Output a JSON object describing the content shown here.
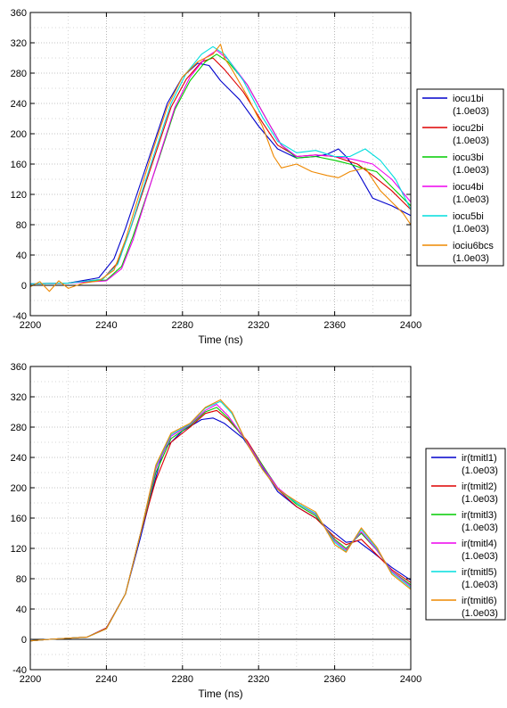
{
  "chart_data": [
    {
      "type": "line",
      "title": "",
      "xlabel": "Time (ns)",
      "ylabel": "",
      "xlim": [
        2200,
        2400
      ],
      "ylim": [
        -40,
        360
      ],
      "xticks": [
        2200,
        2240,
        2280,
        2320,
        2360,
        2400
      ],
      "yticks": [
        -40,
        0,
        40,
        80,
        120,
        160,
        200,
        240,
        280,
        320,
        360
      ],
      "grid": true,
      "legend_position": "right",
      "series": [
        {
          "name": "iocu1bi",
          "scale": "(1.0e03)",
          "color": "#0000cc",
          "x": [
            2200,
            2220,
            2236,
            2244,
            2250,
            2256,
            2264,
            2272,
            2280,
            2288,
            2294,
            2300,
            2310,
            2320,
            2330,
            2340,
            2350,
            2356,
            2362,
            2366,
            2372,
            2380,
            2390,
            2400
          ],
          "y": [
            2,
            3,
            10,
            35,
            75,
            120,
            180,
            240,
            275,
            293,
            290,
            270,
            245,
            210,
            180,
            168,
            170,
            173,
            180,
            170,
            150,
            115,
            105,
            92
          ]
        },
        {
          "name": "iocu2bi",
          "scale": "(1.0e03)",
          "color": "#dd0000",
          "x": [
            2200,
            2220,
            2238,
            2246,
            2252,
            2258,
            2266,
            2274,
            2282,
            2290,
            2296,
            2302,
            2312,
            2322,
            2330,
            2340,
            2350,
            2360,
            2366,
            2372,
            2380,
            2390,
            2400
          ],
          "y": [
            2,
            3,
            8,
            30,
            70,
            115,
            175,
            235,
            272,
            295,
            300,
            285,
            255,
            215,
            185,
            170,
            172,
            170,
            165,
            160,
            145,
            125,
            100
          ]
        },
        {
          "name": "iocu3bi",
          "scale": "(1.0e03)",
          "color": "#00cc00",
          "x": [
            2200,
            2220,
            2240,
            2248,
            2254,
            2260,
            2268,
            2276,
            2284,
            2292,
            2298,
            2304,
            2314,
            2324,
            2332,
            2340,
            2350,
            2360,
            2368,
            2374,
            2382,
            2390,
            2400
          ],
          "y": [
            2,
            3,
            7,
            25,
            65,
            110,
            170,
            232,
            270,
            295,
            305,
            295,
            265,
            220,
            185,
            168,
            170,
            165,
            160,
            155,
            150,
            130,
            105
          ]
        },
        {
          "name": "iocu4bi",
          "scale": "(1.0e03)",
          "color": "#ee00ee",
          "x": [
            2200,
            2220,
            2240,
            2248,
            2254,
            2260,
            2268,
            2276,
            2284,
            2292,
            2298,
            2304,
            2314,
            2324,
            2332,
            2340,
            2350,
            2360,
            2366,
            2372,
            2380,
            2390,
            2400
          ],
          "y": [
            2,
            3,
            6,
            22,
            60,
            108,
            172,
            235,
            275,
            300,
            310,
            298,
            265,
            220,
            185,
            170,
            172,
            170,
            168,
            165,
            160,
            140,
            110
          ]
        },
        {
          "name": "iocu5bi",
          "scale": "(1.0e03)",
          "color": "#00dddd",
          "x": [
            2200,
            2220,
            2238,
            2246,
            2252,
            2258,
            2266,
            2274,
            2282,
            2290,
            2296,
            2302,
            2312,
            2322,
            2330,
            2340,
            2350,
            2360,
            2368,
            2376,
            2384,
            2392,
            2400
          ],
          "y": [
            2,
            3,
            8,
            28,
            70,
            118,
            180,
            240,
            280,
            305,
            315,
            305,
            270,
            222,
            190,
            175,
            178,
            170,
            170,
            180,
            165,
            140,
            100
          ]
        },
        {
          "name": "iociu6bcs",
          "scale": "(1.0e03)",
          "color": "#ee8800",
          "x": [
            2200,
            2205,
            2210,
            2215,
            2220,
            2228,
            2236,
            2244,
            2250,
            2256,
            2264,
            2272,
            2280,
            2288,
            2296,
            2300,
            2302,
            2306,
            2314,
            2322,
            2328,
            2332,
            2340,
            2348,
            2356,
            2362,
            2368,
            2376,
            2384,
            2390,
            2396,
            2400
          ],
          "y": [
            -2,
            5,
            -8,
            6,
            -4,
            3,
            6,
            20,
            60,
            110,
            175,
            235,
            275,
            295,
            305,
            318,
            300,
            285,
            250,
            210,
            170,
            155,
            160,
            150,
            145,
            142,
            150,
            155,
            125,
            110,
            95,
            80
          ]
        }
      ]
    },
    {
      "type": "line",
      "title": "",
      "xlabel": "Time (ns)",
      "ylabel": "",
      "xlim": [
        2200,
        2400
      ],
      "ylim": [
        -40,
        360
      ],
      "xticks": [
        2200,
        2240,
        2280,
        2320,
        2360,
        2400
      ],
      "yticks": [
        -40,
        0,
        40,
        80,
        120,
        160,
        200,
        240,
        280,
        320,
        360
      ],
      "grid": true,
      "legend_position": "right",
      "series": [
        {
          "name": "ir(tmitl1)",
          "scale": "(1.0e03)",
          "color": "#0000cc",
          "x": [
            2200,
            2210,
            2230,
            2240,
            2250,
            2258,
            2264,
            2270,
            2280,
            2290,
            2296,
            2302,
            2312,
            2320,
            2330,
            2340,
            2350,
            2360,
            2366,
            2372,
            2380,
            2390,
            2400
          ],
          "y": [
            -2,
            0,
            3,
            15,
            60,
            135,
            195,
            250,
            275,
            290,
            292,
            285,
            265,
            235,
            195,
            175,
            160,
            140,
            128,
            130,
            115,
            95,
            78
          ]
        },
        {
          "name": "ir(tmitl2)",
          "scale": "(1.0e03)",
          "color": "#dd0000",
          "x": [
            2200,
            2210,
            2230,
            2240,
            2250,
            2258,
            2266,
            2274,
            2284,
            2292,
            2298,
            2304,
            2314,
            2322,
            2330,
            2340,
            2350,
            2360,
            2366,
            2374,
            2382,
            2390,
            2400
          ],
          "y": [
            -2,
            0,
            3,
            15,
            60,
            140,
            210,
            260,
            280,
            298,
            302,
            290,
            262,
            230,
            198,
            175,
            160,
            135,
            125,
            132,
            112,
            92,
            75
          ]
        },
        {
          "name": "ir(tmitl3)",
          "scale": "(1.0e03)",
          "color": "#00cc00",
          "x": [
            2200,
            2210,
            2230,
            2240,
            2250,
            2258,
            2266,
            2274,
            2284,
            2292,
            2298,
            2304,
            2314,
            2322,
            2330,
            2340,
            2350,
            2360,
            2366,
            2374,
            2382,
            2390,
            2400
          ],
          "y": [
            -2,
            0,
            3,
            14,
            60,
            140,
            220,
            265,
            282,
            300,
            306,
            292,
            260,
            230,
            200,
            178,
            163,
            132,
            120,
            140,
            118,
            90,
            72
          ]
        },
        {
          "name": "ir(tmitl4)",
          "scale": "(1.0e03)",
          "color": "#ee00ee",
          "x": [
            2200,
            2210,
            2230,
            2240,
            2250,
            2258,
            2266,
            2274,
            2284,
            2292,
            2298,
            2304,
            2314,
            2322,
            2330,
            2340,
            2350,
            2360,
            2366,
            2374,
            2382,
            2390,
            2400
          ],
          "y": [
            -2,
            0,
            3,
            14,
            60,
            140,
            225,
            268,
            283,
            302,
            310,
            295,
            260,
            228,
            200,
            180,
            165,
            130,
            118,
            142,
            118,
            90,
            70
          ]
        },
        {
          "name": "ir(tmitl5)",
          "scale": "(1.0e03)",
          "color": "#00dddd",
          "x": [
            2200,
            2210,
            2230,
            2240,
            2250,
            2258,
            2266,
            2274,
            2284,
            2292,
            2300,
            2306,
            2314,
            2322,
            2330,
            2340,
            2350,
            2360,
            2366,
            2374,
            2382,
            2390,
            2400
          ],
          "y": [
            -2,
            0,
            3,
            14,
            60,
            140,
            228,
            270,
            284,
            305,
            314,
            298,
            258,
            225,
            198,
            180,
            166,
            128,
            116,
            145,
            120,
            88,
            68
          ]
        },
        {
          "name": "ir(tmitl6)",
          "scale": "(1.0e03)",
          "color": "#ee8800",
          "x": [
            2200,
            2210,
            2230,
            2240,
            2250,
            2258,
            2266,
            2274,
            2284,
            2292,
            2300,
            2306,
            2314,
            2322,
            2330,
            2340,
            2350,
            2360,
            2366,
            2374,
            2382,
            2390,
            2400
          ],
          "y": [
            -2,
            0,
            3,
            14,
            60,
            140,
            230,
            272,
            285,
            306,
            316,
            300,
            258,
            224,
            198,
            182,
            168,
            125,
            115,
            147,
            122,
            86,
            66
          ]
        }
      ]
    }
  ]
}
